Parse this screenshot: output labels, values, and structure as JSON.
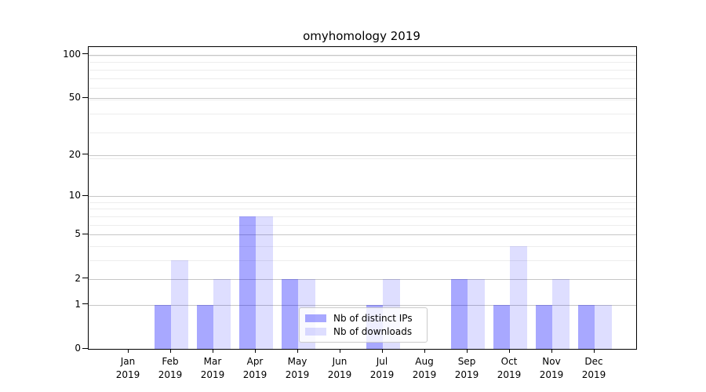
{
  "chart_data": {
    "type": "bar",
    "title": "omyhomology 2019",
    "categories": [
      "Jan 2019",
      "Feb 2019",
      "Mar 2019",
      "Apr 2019",
      "May 2019",
      "Jun 2019",
      "Jul 2019",
      "Aug 2019",
      "Sep 2019",
      "Oct 2019",
      "Nov 2019",
      "Dec 2019"
    ],
    "series": [
      {
        "name": "Nb of distinct IPs",
        "color": "rgba(0, 0, 255, 0.34)",
        "color_hex": "#a8a8f8",
        "values": [
          0,
          1,
          1,
          7,
          2,
          0,
          1,
          0,
          2,
          1,
          1,
          1
        ]
      },
      {
        "name": "Nb of downloads",
        "color": "rgba(0, 0, 255, 0.13)",
        "color_hex": "#dedefb",
        "values": [
          0,
          3,
          2,
          7,
          2,
          0,
          2,
          0,
          2,
          4,
          2,
          1
        ]
      }
    ],
    "xlabel": "",
    "ylabel": "",
    "yticks": [
      0,
      1,
      2,
      5,
      10,
      20,
      50,
      100
    ],
    "ylim": [
      0,
      113
    ],
    "scale": "log1p",
    "grid": "both",
    "legend_position": "lower center",
    "background": "#ffffff"
  }
}
